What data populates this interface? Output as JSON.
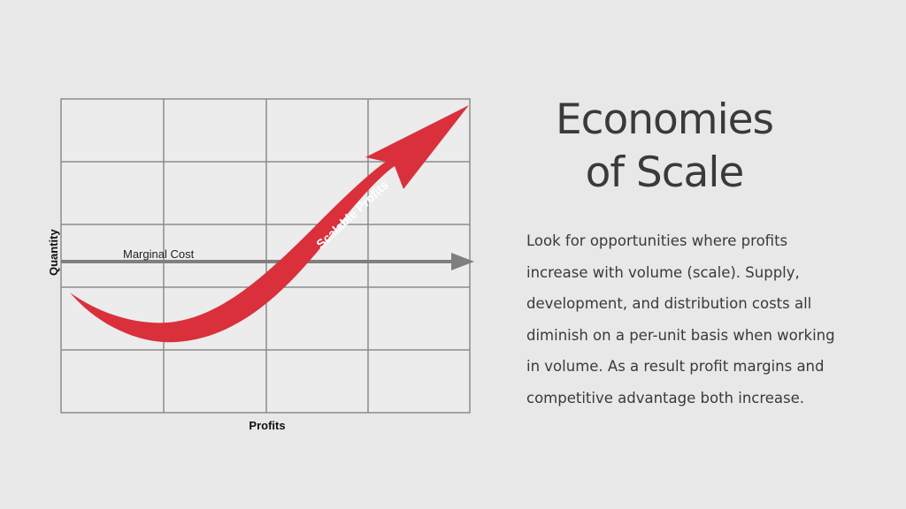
{
  "diagram": {
    "y_axis_label": "Quantity",
    "x_axis_label": "Profits",
    "marginal_cost_label": "Marginal Cost",
    "curve_label": "Scalable Profits",
    "colors": {
      "background": "#e8e8e8",
      "grid": "#8c8c8c",
      "grid_background": "#ececec",
      "arrow_red": "#d9303c",
      "marginal_arrow": "#7f7f7f"
    }
  },
  "title": {
    "line1": "Economies",
    "line2": "of Scale"
  },
  "body_text": "Look for opportunities where profits\nincrease with volume (scale).  Supply,\ndevelopment, and distribution costs all\ndiminish on a per-unit basis when working\nin volume.  As a result profit margins and\ncompetitive advantage both increase."
}
